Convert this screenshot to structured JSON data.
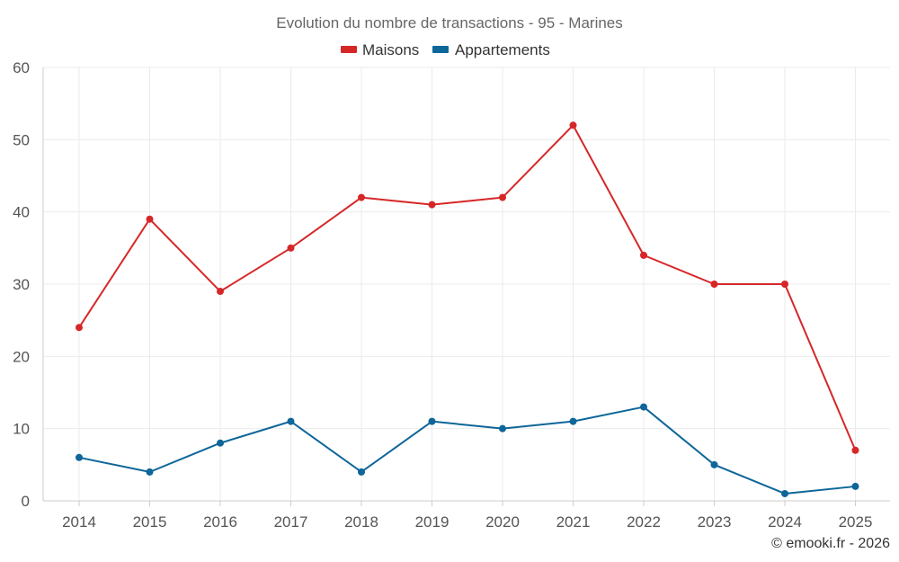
{
  "chart_data": {
    "type": "line",
    "title": "Evolution du nombre de transactions - 95 - Marines",
    "xlabel": "",
    "ylabel": "",
    "categories": [
      "2014",
      "2015",
      "2016",
      "2017",
      "2018",
      "2019",
      "2020",
      "2021",
      "2022",
      "2023",
      "2024",
      "2025"
    ],
    "ylim": [
      0,
      60
    ],
    "yticks": [
      0,
      10,
      20,
      30,
      40,
      50,
      60
    ],
    "grid": true,
    "legend_position": "top-center",
    "series": [
      {
        "name": "Maisons",
        "color": "#d62728",
        "values": [
          24,
          39,
          29,
          35,
          42,
          41,
          42,
          52,
          34,
          30,
          30,
          7
        ]
      },
      {
        "name": "Appartements",
        "color": "#0e6699",
        "values": [
          6,
          4,
          8,
          11,
          4,
          11,
          10,
          11,
          13,
          5,
          1,
          2
        ]
      }
    ]
  },
  "credit": "© emooki.fr - 2026"
}
